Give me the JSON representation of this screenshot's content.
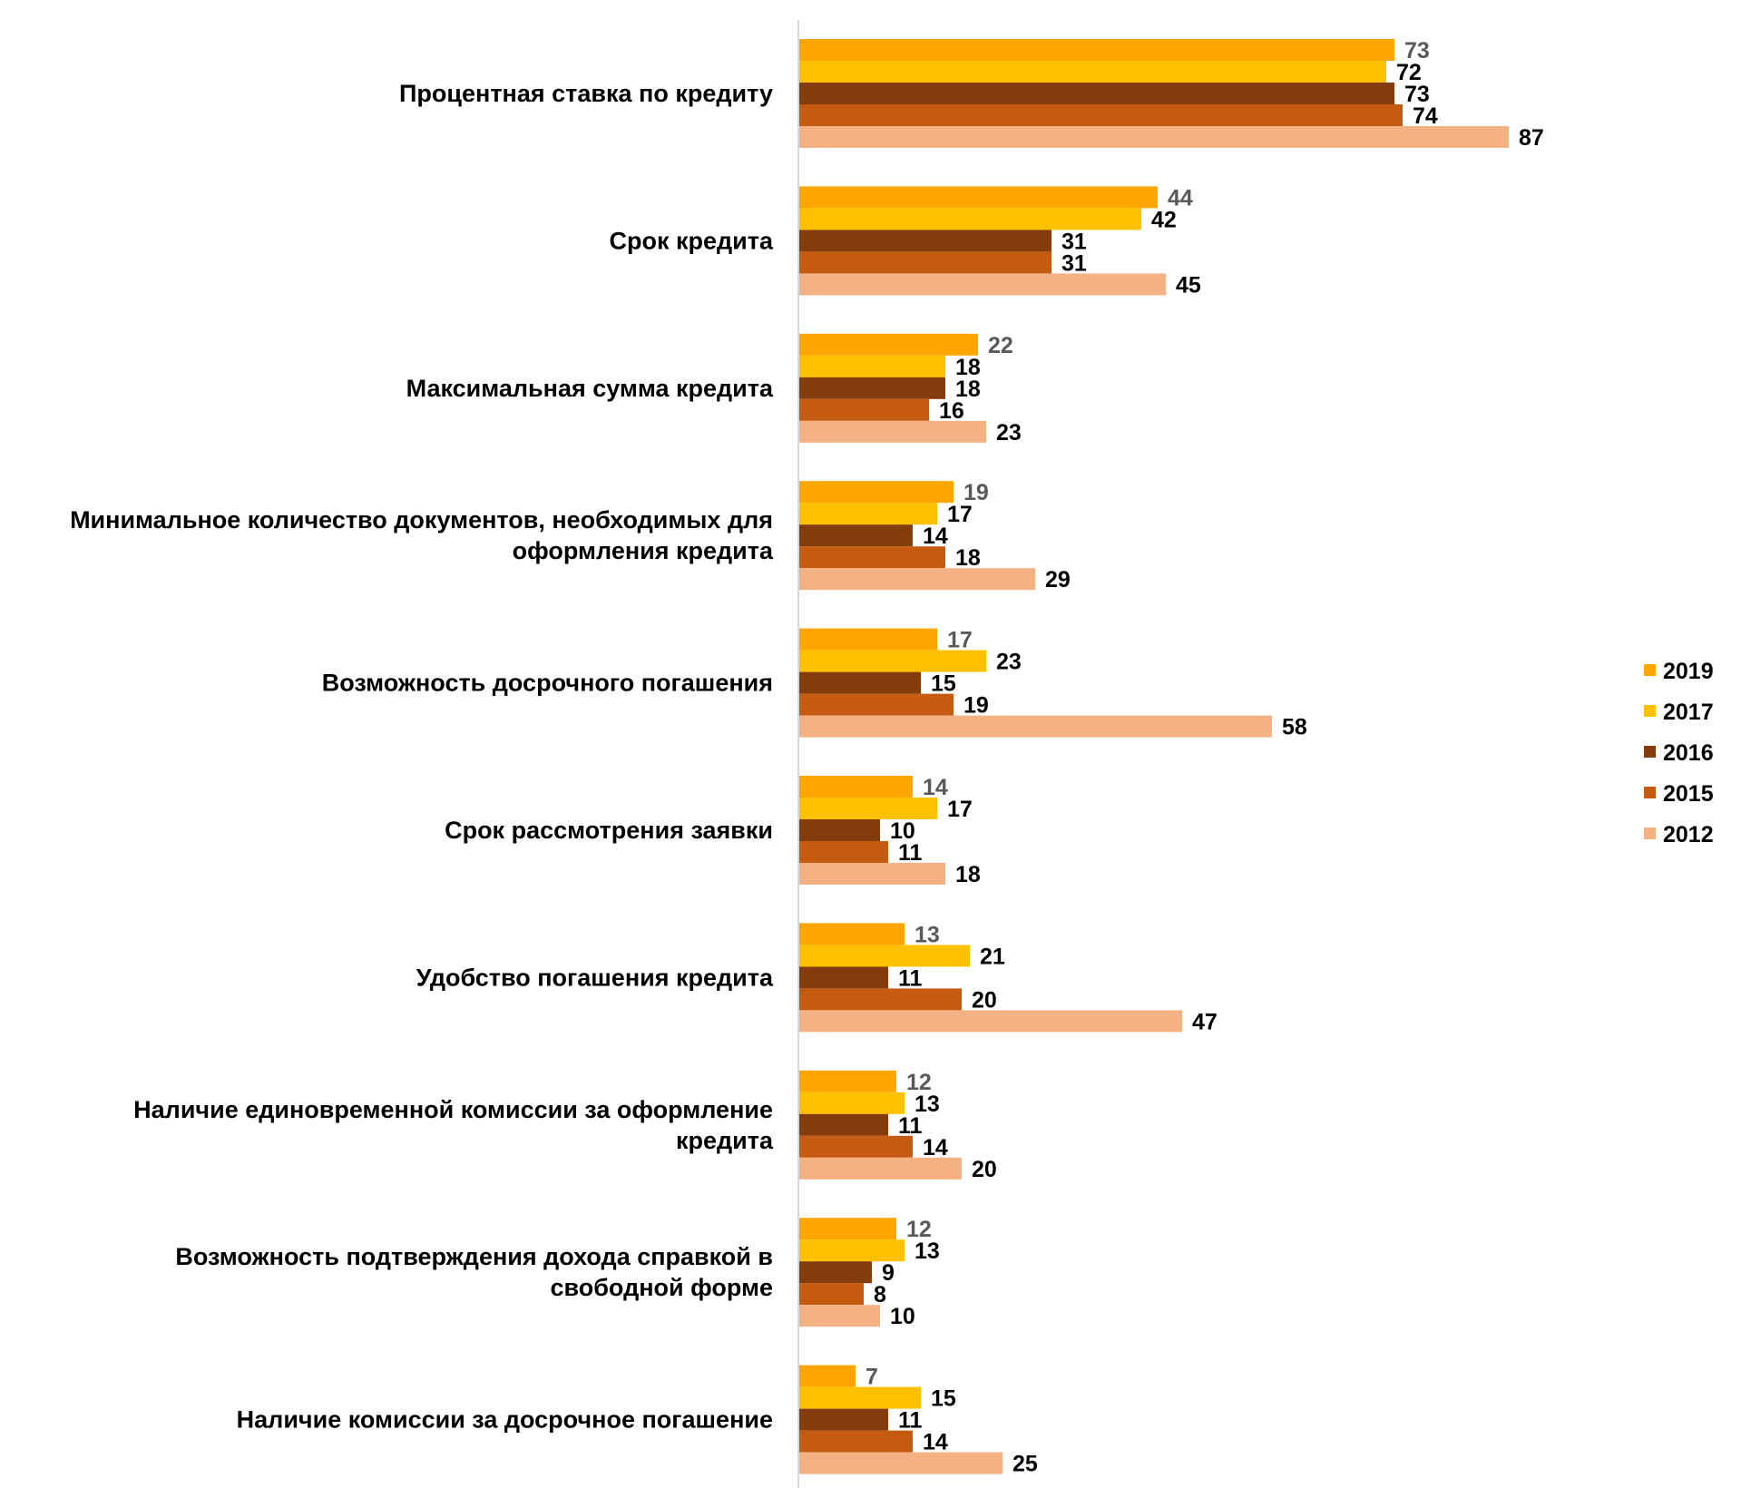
{
  "chart_data": {
    "type": "bar",
    "orientation": "horizontal",
    "title": "",
    "xlabel": "",
    "ylabel": "",
    "xlim": [
      0,
      100
    ],
    "grid": false,
    "legend_position": "right",
    "categories": [
      "Процентная ставка по кредиту",
      "Срок кредита",
      "Максимальная сумма кредита",
      "Минимальное количество документов, необходимых для оформления кредита",
      "Возможность досрочного погашения",
      "Срок рассмотрения заявки",
      "Удобство погашения кредита",
      "Наличие единовременной комиссии за оформление кредита",
      "Возможность подтверждения дохода справкой в свободной форме",
      "Наличие комиссии за досрочное погашение"
    ],
    "category_lines": [
      [
        "Процентная ставка по кредиту"
      ],
      [
        "Срок кредита"
      ],
      [
        "Максимальная сумма кредита"
      ],
      [
        "Минимальное количество документов, необходимых для",
        "оформления кредита"
      ],
      [
        "Возможность досрочного погашения"
      ],
      [
        "Срок рассмотрения заявки"
      ],
      [
        "Удобство погашения кредита"
      ],
      [
        "Наличие единовременной комиссии за оформление",
        "кредита"
      ],
      [
        "Возможность подтверждения дохода справкой в",
        "свободной форме"
      ],
      [
        "Наличие комиссии за досрочное погашение"
      ]
    ],
    "series": [
      {
        "name": "2019",
        "color": "#FFA500",
        "label_color": "#595959",
        "values": [
          73,
          44,
          22,
          19,
          17,
          14,
          13,
          12,
          12,
          7
        ]
      },
      {
        "name": "2017",
        "color": "#FFC000",
        "label_color": "#000000",
        "values": [
          72,
          42,
          18,
          17,
          23,
          17,
          21,
          13,
          13,
          15
        ]
      },
      {
        "name": "2016",
        "color": "#843C0C",
        "label_color": "#000000",
        "values": [
          73,
          31,
          18,
          14,
          15,
          10,
          11,
          11,
          9,
          11
        ]
      },
      {
        "name": "2015",
        "color": "#C55A11",
        "label_color": "#000000",
        "values": [
          74,
          31,
          16,
          18,
          19,
          11,
          20,
          14,
          8,
          14
        ]
      },
      {
        "name": "2012",
        "color": "#F4B183",
        "label_color": "#000000",
        "values": [
          87,
          45,
          23,
          29,
          58,
          18,
          47,
          20,
          10,
          25
        ]
      }
    ]
  }
}
